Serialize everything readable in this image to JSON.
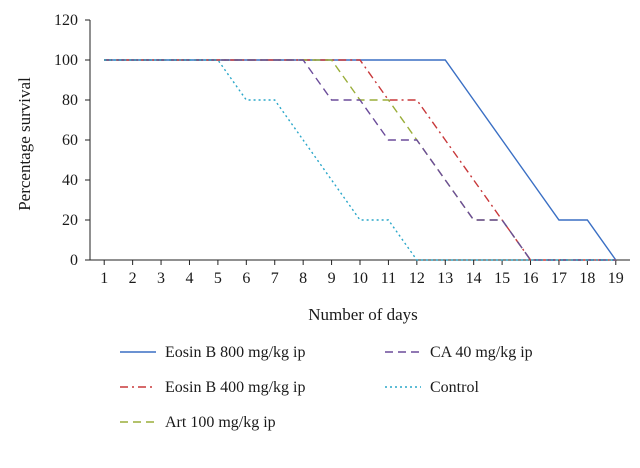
{
  "chart_data": {
    "type": "line",
    "title": "",
    "xlabel": "Number of days",
    "ylabel": "Percentage survival",
    "x": [
      1,
      2,
      3,
      4,
      5,
      6,
      7,
      8,
      9,
      10,
      11,
      12,
      13,
      14,
      15,
      16,
      17,
      18,
      19
    ],
    "x_tick_labels": [
      "1",
      "2",
      "3",
      "4",
      "5",
      "6",
      "7",
      "8",
      "9",
      "10",
      "11",
      "12",
      "13",
      "14",
      "15",
      "16",
      "17",
      "18",
      "19"
    ],
    "y_tick_labels": [
      "0",
      "20",
      "40",
      "60",
      "80",
      "100",
      "120"
    ],
    "xlim": [
      0.5,
      19.5
    ],
    "ylim": [
      0,
      120
    ],
    "grid": false,
    "legend_position": "bottom",
    "series": [
      {
        "name": "Eosin B 800 mg/kg ip",
        "color": "#3a6fc4",
        "style": "solid",
        "values": [
          100,
          100,
          100,
          100,
          100,
          100,
          100,
          100,
          100,
          100,
          100,
          100,
          100,
          80,
          60,
          40,
          20,
          20,
          0
        ]
      },
      {
        "name": "Eosin B 400 mg/kg ip",
        "color": "#c8383a",
        "style": "dashdot",
        "values": [
          100,
          100,
          100,
          100,
          100,
          100,
          100,
          100,
          100,
          100,
          80,
          80,
          60,
          40,
          20,
          0,
          0,
          0,
          0
        ]
      },
      {
        "name": "Art 100 mg/kg ip",
        "color": "#9aae3a",
        "style": "dash",
        "values": [
          100,
          100,
          100,
          100,
          100,
          100,
          100,
          100,
          100,
          80,
          80,
          60,
          40,
          20,
          20,
          0,
          0,
          0,
          0
        ]
      },
      {
        "name": "CA 40 mg/kg ip",
        "color": "#6b4c9a",
        "style": "dash",
        "values": [
          100,
          100,
          100,
          100,
          100,
          100,
          100,
          100,
          80,
          80,
          60,
          60,
          40,
          20,
          20,
          0,
          0,
          0,
          0
        ]
      },
      {
        "name": "Control",
        "color": "#2aa7c9",
        "style": "dot",
        "values": [
          100,
          100,
          100,
          100,
          100,
          80,
          80,
          60,
          40,
          20,
          20,
          0,
          0,
          0,
          0,
          0,
          0,
          0,
          0
        ]
      }
    ]
  }
}
